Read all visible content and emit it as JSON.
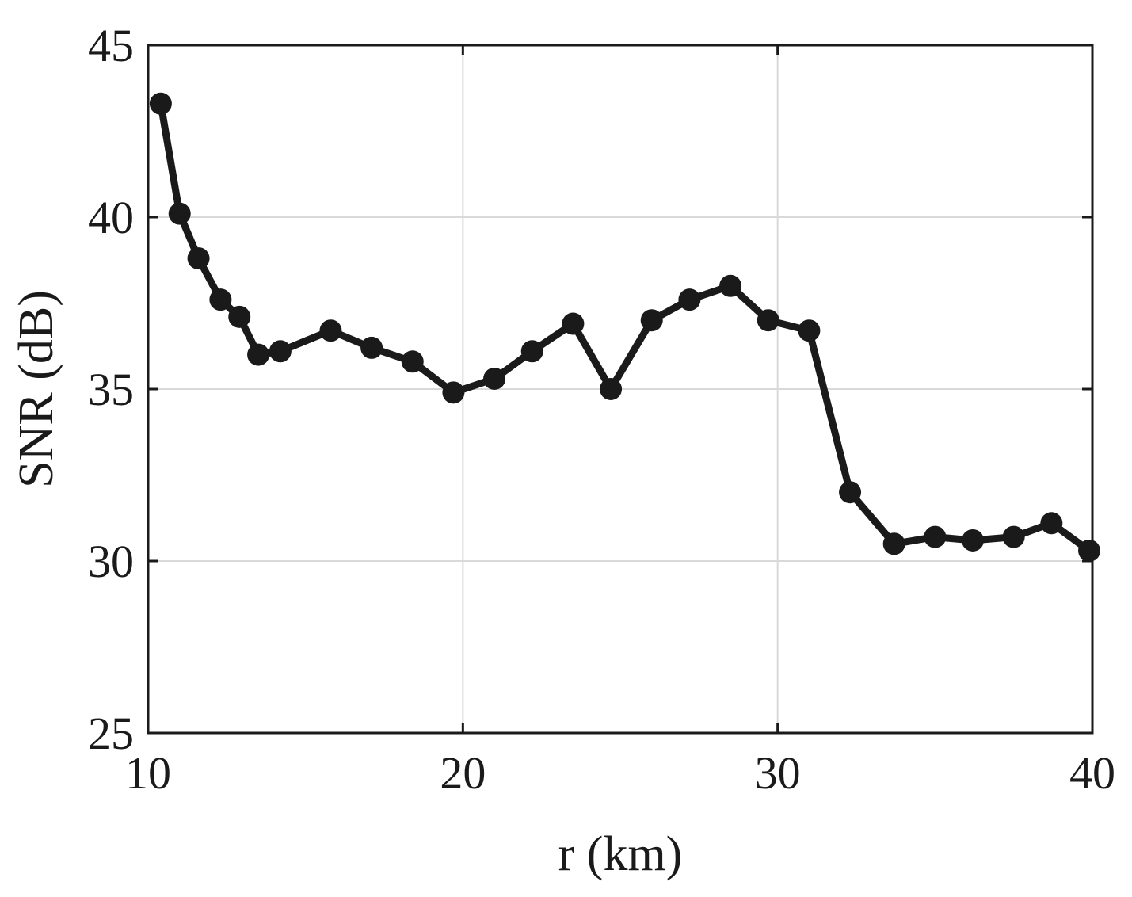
{
  "chart_data": {
    "type": "line",
    "xlabel": "r (km)",
    "ylabel": "SNR (dB)",
    "xlim": [
      10,
      40
    ],
    "ylim": [
      25,
      45
    ],
    "xticks": [
      10,
      20,
      30,
      40
    ],
    "yticks": [
      25,
      30,
      35,
      40,
      45
    ],
    "grid": true,
    "line_color": "#1a1a1a",
    "grid_color": "#d9d9d9",
    "series": [
      {
        "x": [
          10.4,
          11.0,
          11.6,
          12.3,
          12.9,
          13.5,
          14.2,
          15.8,
          17.1,
          18.4,
          19.7,
          21.0,
          22.2,
          23.5,
          24.7,
          26.0,
          27.2,
          28.5,
          29.7,
          31.0,
          32.3,
          33.7,
          35.0,
          36.2,
          37.5,
          38.7,
          39.9
        ],
        "y": [
          43.3,
          40.1,
          38.8,
          37.6,
          37.1,
          36.0,
          36.1,
          36.7,
          36.2,
          35.8,
          34.9,
          35.3,
          36.1,
          36.9,
          35.0,
          37.0,
          37.6,
          38.0,
          37.0,
          36.7,
          32.0,
          30.5,
          30.7,
          30.6,
          30.7,
          31.1,
          30.3
        ]
      }
    ]
  }
}
